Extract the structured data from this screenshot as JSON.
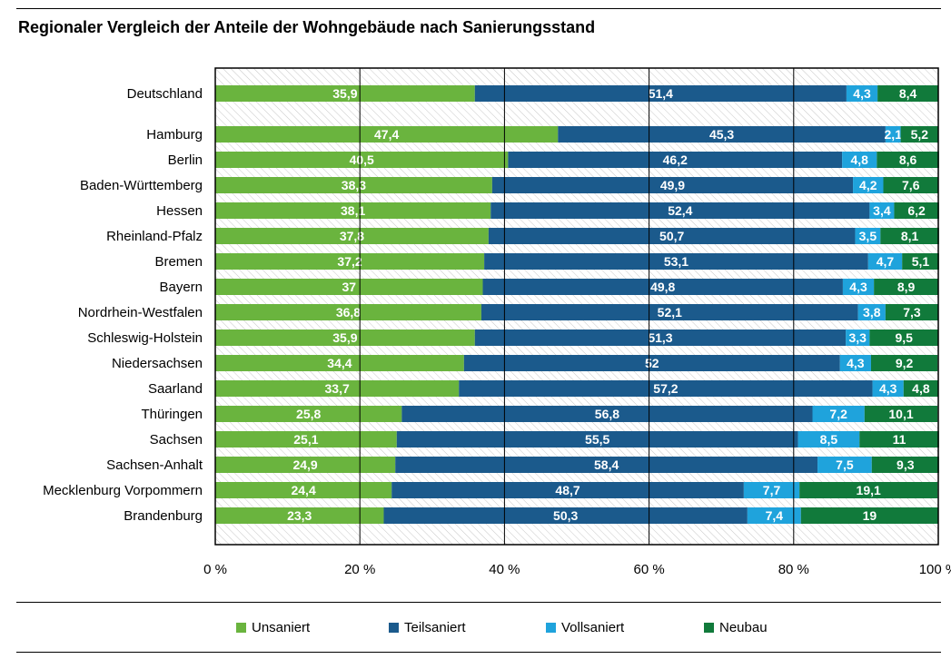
{
  "title": "Regionaler Vergleich der Anteile der Wohngebäude nach Sanierungsstand",
  "colors": {
    "Unsaniert": "#6ab43e",
    "Teilsaniert": "#1b5a8c",
    "Vollsaniert": "#1fa3dc",
    "Neubau": "#117a3b"
  },
  "chart_data": {
    "type": "bar",
    "orientation": "horizontal",
    "stacked": true,
    "title": "Regionaler Vergleich der Anteile der Wohngebäude nach Sanierungsstand",
    "categories": [
      "Deutschland",
      "Hamburg",
      "Berlin",
      "Baden-Württemberg",
      "Hessen",
      "Rheinland-Pfalz",
      "Bremen",
      "Bayern",
      "Nordrhein-Westfalen",
      "Schleswig-Holstein",
      "Niedersachsen",
      "Saarland",
      "Thüringen",
      "Sachsen",
      "Sachsen-Anhalt",
      "Mecklenburg Vorpommern",
      "Brandenburg"
    ],
    "value_labels": [
      [
        "35,9",
        "51,4",
        "4,3",
        "8,4"
      ],
      [
        "47,4",
        "45,3",
        "2,1",
        "5,2"
      ],
      [
        "40,5",
        "46,2",
        "4,8",
        "8,6"
      ],
      [
        "38,3",
        "49,9",
        "4,2",
        "7,6"
      ],
      [
        "38,1",
        "52,4",
        "3,4",
        "6,2"
      ],
      [
        "37,8",
        "50,7",
        "3,5",
        "8,1"
      ],
      [
        "37,2",
        "53,1",
        "4,7",
        "5,1"
      ],
      [
        "37",
        "49,8",
        "4,3",
        "8,9"
      ],
      [
        "36,8",
        "52,1",
        "3,8",
        "7,3"
      ],
      [
        "35,9",
        "51,3",
        "3,3",
        "9,5"
      ],
      [
        "34,4",
        "52",
        "4,3",
        "9,2"
      ],
      [
        "33,7",
        "57,2",
        "4,3",
        "4,8"
      ],
      [
        "25,8",
        "56,8",
        "7,2",
        "10,1"
      ],
      [
        "25,1",
        "55,5",
        "8,5",
        "11"
      ],
      [
        "24,9",
        "58,4",
        "7,5",
        "9,3"
      ],
      [
        "24,4",
        "48,7",
        "7,7",
        "19,1"
      ],
      [
        "23,3",
        "50,3",
        "7,4",
        "19"
      ]
    ],
    "series": [
      {
        "name": "Unsaniert",
        "values": [
          35.9,
          47.4,
          40.5,
          38.3,
          38.1,
          37.8,
          37.2,
          37,
          36.8,
          35.9,
          34.4,
          33.7,
          25.8,
          25.1,
          24.9,
          24.4,
          23.3
        ]
      },
      {
        "name": "Teilsaniert",
        "values": [
          51.4,
          45.3,
          46.2,
          49.9,
          52.4,
          50.7,
          53.1,
          49.8,
          52.1,
          51.3,
          52,
          57.2,
          56.8,
          55.5,
          58.4,
          48.7,
          50.3
        ]
      },
      {
        "name": "Vollsaniert",
        "values": [
          4.3,
          2.1,
          4.8,
          4.2,
          3.4,
          3.5,
          4.7,
          4.3,
          3.8,
          3.3,
          4.3,
          4.3,
          7.2,
          8.5,
          7.5,
          7.7,
          7.4
        ]
      },
      {
        "name": "Neubau",
        "values": [
          8.4,
          5.2,
          8.6,
          7.6,
          6.2,
          8.1,
          5.1,
          8.9,
          7.3,
          9.5,
          9.2,
          4.8,
          10.1,
          11,
          9.3,
          19.1,
          19
        ]
      }
    ],
    "xlim": [
      0,
      100
    ],
    "xticks": [
      "0 %",
      "20 %",
      "40 %",
      "60 %",
      "80 %",
      "100 %"
    ],
    "grid": true,
    "legend_position": "bottom"
  }
}
